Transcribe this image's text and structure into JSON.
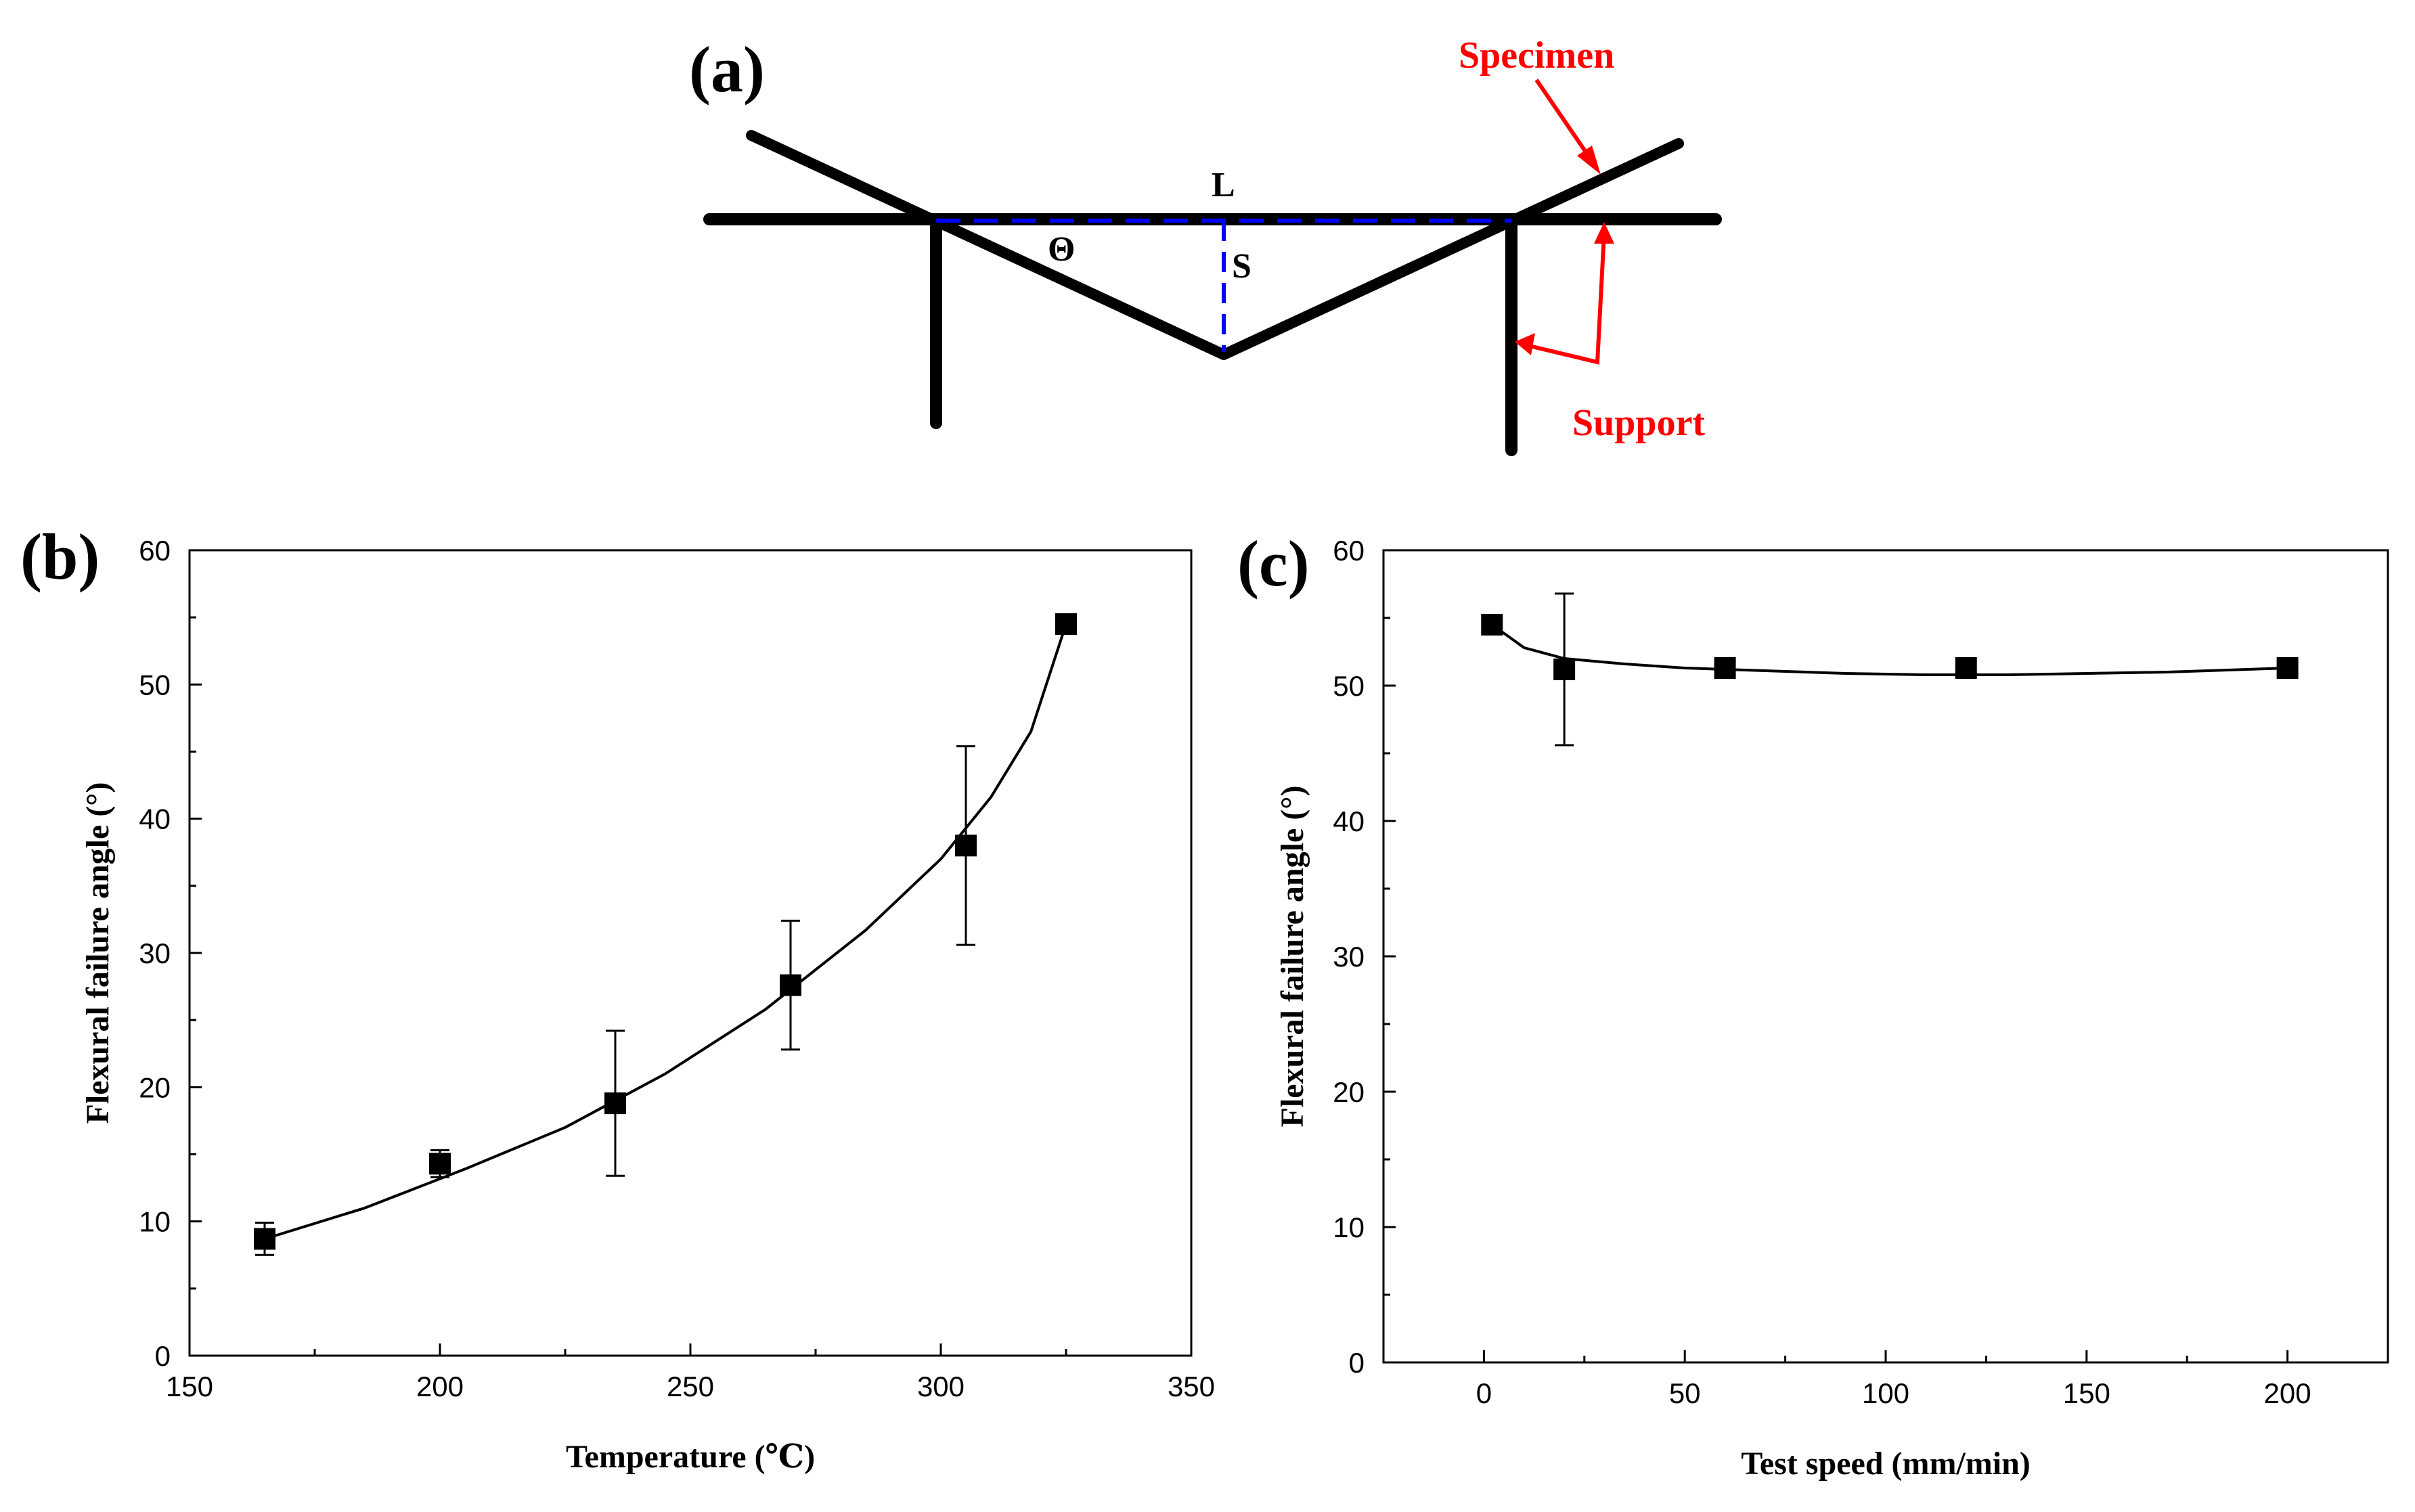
{
  "colors": {
    "ink": "#000000",
    "annotation": "#ff0000",
    "dashed": "#0000ff"
  },
  "diagram": {
    "panel_label": "(a)",
    "label_L": "L",
    "label_S": "S",
    "label_theta": "Θ",
    "specimen_label": "Specimen",
    "support_label": "Support"
  },
  "chart_data": [
    {
      "panel_label": "(b)",
      "type": "scatter",
      "xlabel": "Temperature (℃)",
      "ylabel": "Flexural failure angle (°)",
      "xlim": [
        150,
        350
      ],
      "ylim": [
        0,
        60
      ],
      "xticks": [
        "150",
        "200",
        "250",
        "300",
        "350"
      ],
      "yticks": [
        "0",
        "10",
        "20",
        "30",
        "40",
        "50",
        "60"
      ],
      "x": [
        165,
        200,
        235,
        270,
        305,
        325
      ],
      "y": [
        8.7,
        14.3,
        18.8,
        27.6,
        38.0,
        54.5
      ],
      "err": [
        1.2,
        1.0,
        5.4,
        4.8,
        7.4,
        0.0
      ],
      "fit": {
        "x": [
          165,
          185,
          205,
          225,
          245,
          265,
          285,
          300,
          310,
          318,
          325
        ],
        "y": [
          8.7,
          11.0,
          13.9,
          17.0,
          21.0,
          25.8,
          31.7,
          37.0,
          41.6,
          46.5,
          54.5
        ]
      }
    },
    {
      "panel_label": "(c)",
      "type": "scatter",
      "xlabel": "Test speed (mm/min)",
      "ylabel": "Flexural failure angle (°)",
      "xlim": [
        -25,
        225
      ],
      "ylim": [
        0,
        60
      ],
      "xticks": [
        "0",
        "50",
        "100",
        "150",
        "200"
      ],
      "yticks": [
        "0",
        "10",
        "20",
        "30",
        "40",
        "50",
        "60"
      ],
      "x": [
        2,
        20,
        60,
        120,
        200
      ],
      "y": [
        54.5,
        51.2,
        51.3,
        51.3,
        51.3
      ],
      "err": [
        0.0,
        5.6,
        0.0,
        0.0,
        0.0
      ],
      "fit": {
        "x": [
          2,
          10,
          20,
          35,
          50,
          70,
          90,
          110,
          130,
          150,
          170,
          200
        ],
        "y": [
          54.5,
          52.8,
          52.0,
          51.6,
          51.3,
          51.1,
          50.9,
          50.8,
          50.8,
          50.9,
          51.0,
          51.3
        ]
      }
    }
  ]
}
